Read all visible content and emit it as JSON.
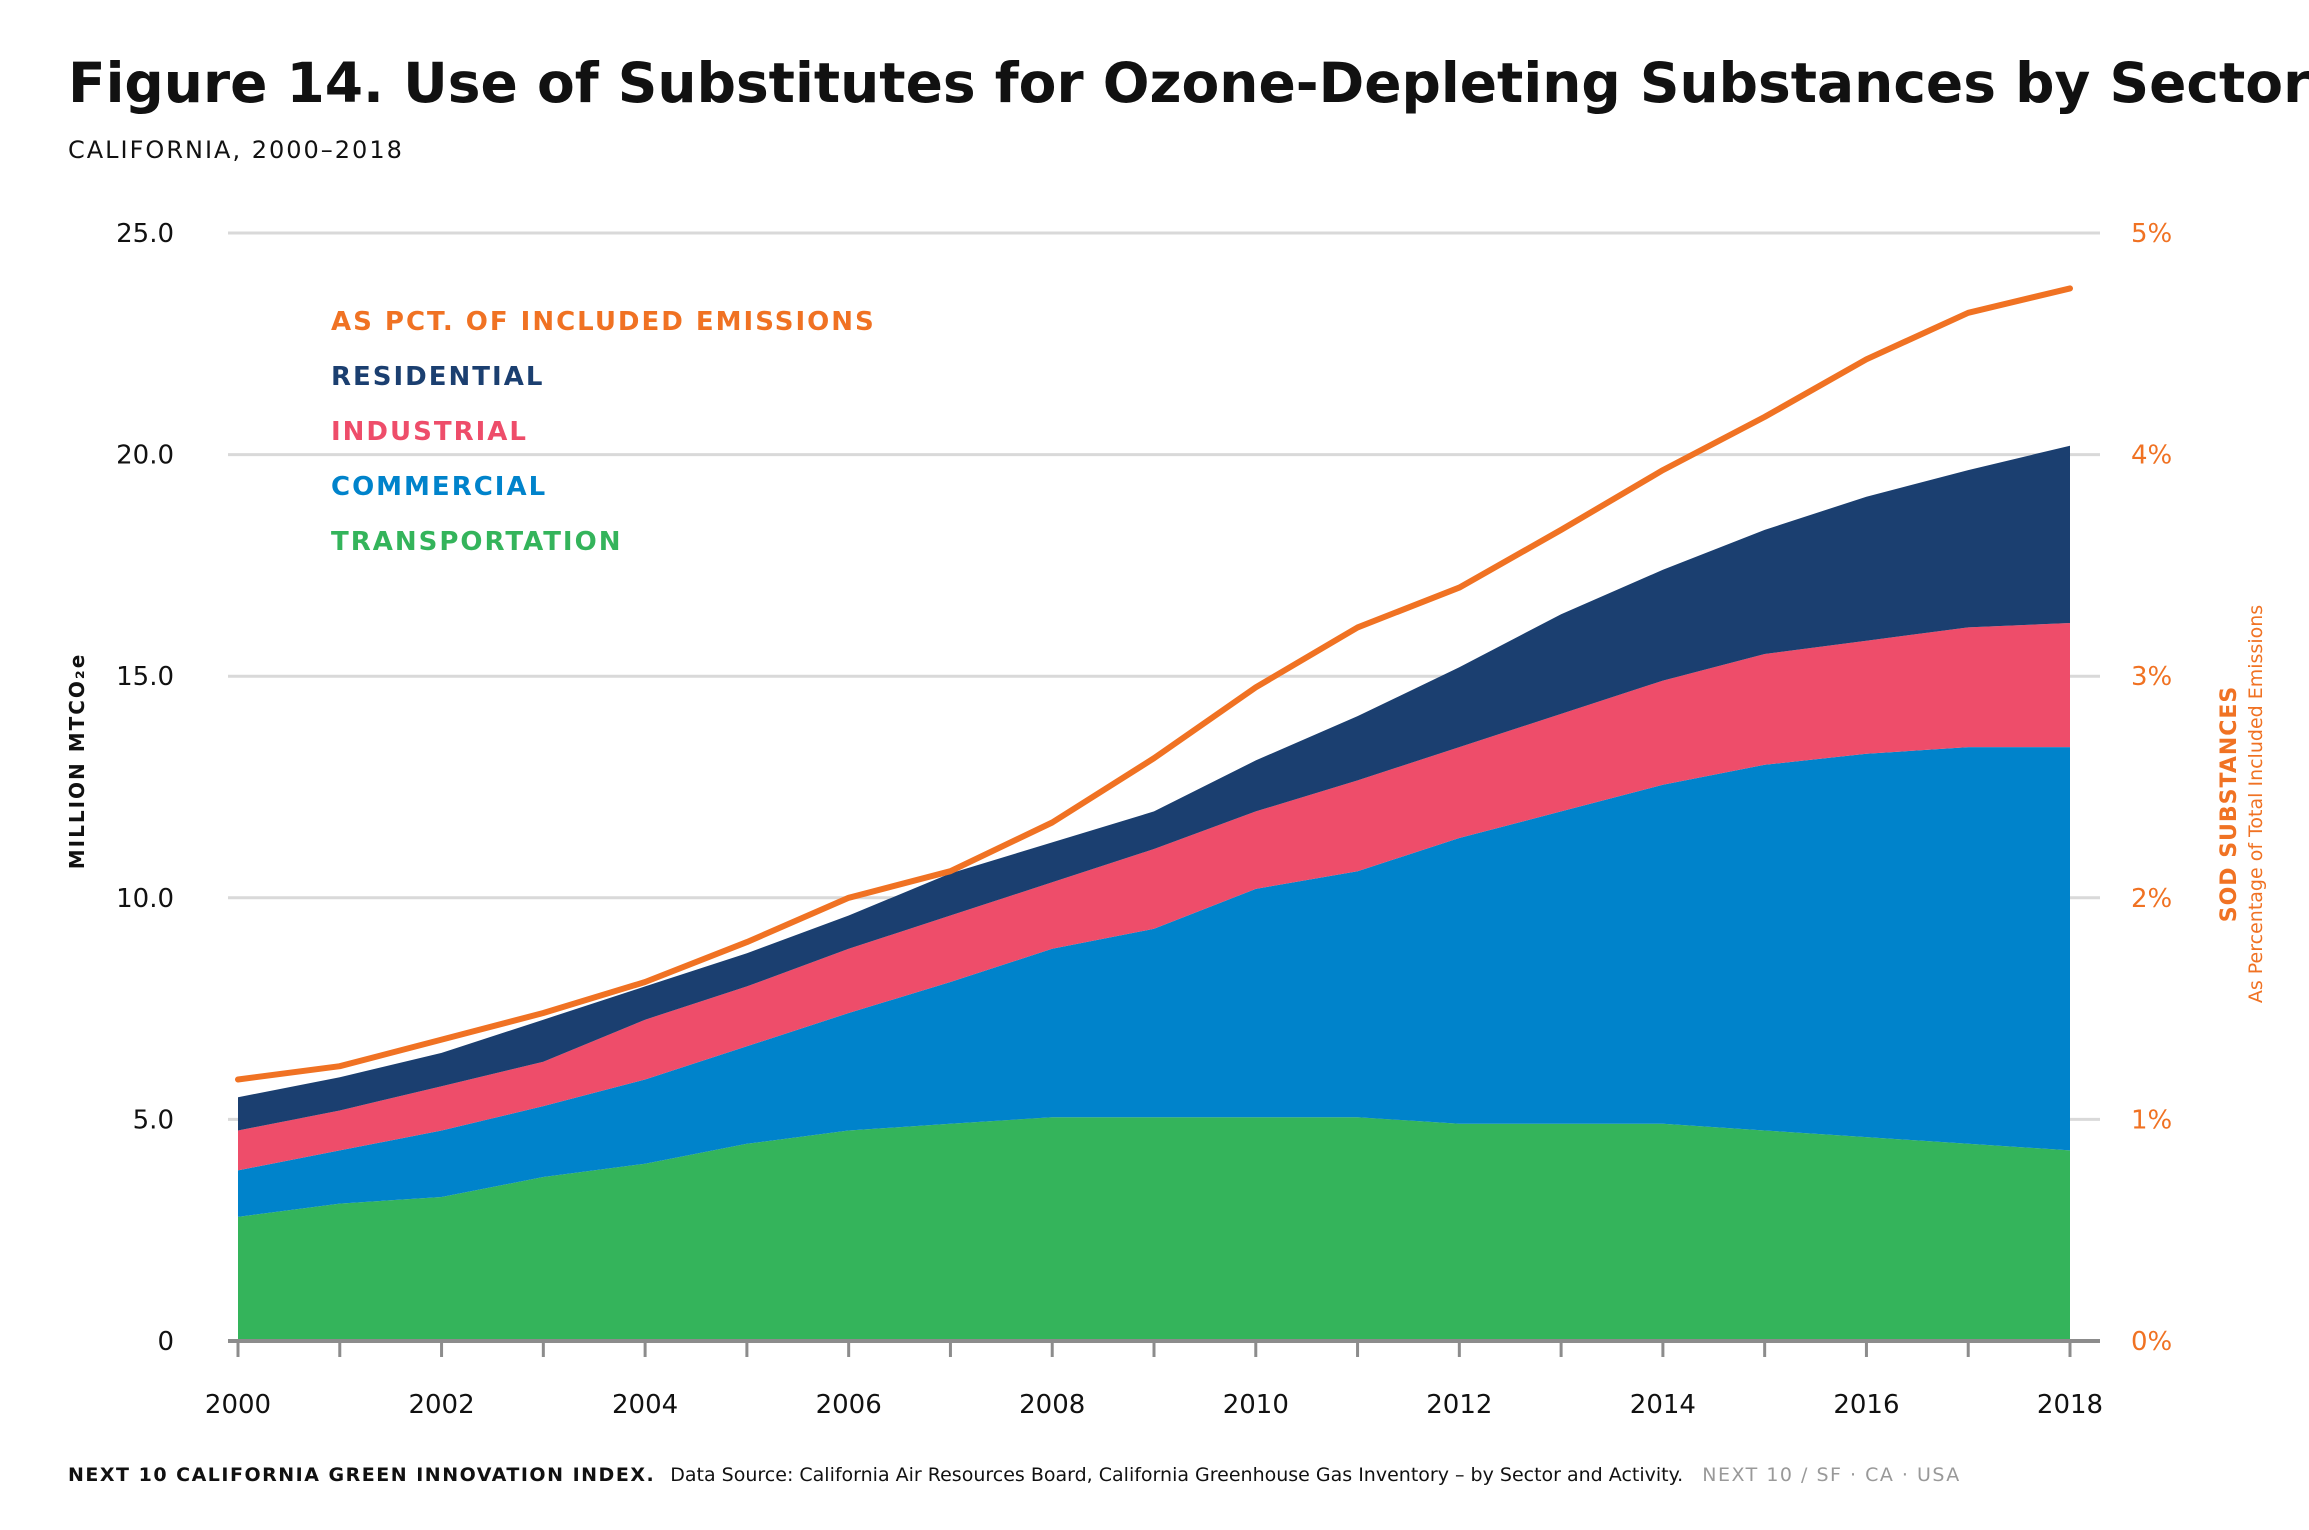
{
  "chart_data": {
    "type": "area",
    "title": "Figure 14. Use of Substitutes for Ozone-Depleting Substances by Sector",
    "subtitle": "CALIFORNIA, 2000–2018",
    "ylabel": "MILLION MTCO₂e",
    "y2label": "SOD SUBSTANCES",
    "y2sublabel": "As Percentage of Total Included Emissions",
    "ylim": [
      0,
      25
    ],
    "y2lim": [
      0,
      5
    ],
    "stacked": true,
    "grid": true,
    "legend_position": "top-left",
    "yticks": [
      "0",
      "5.0",
      "10.0",
      "15.0",
      "20.0",
      "25.0"
    ],
    "y2ticks": [
      "0%",
      "1%",
      "2%",
      "3%",
      "4%",
      "5%"
    ],
    "xticks": [
      "2000",
      "2002",
      "2004",
      "2006",
      "2008",
      "2010",
      "2012",
      "2014",
      "2016",
      "2018"
    ],
    "x": [
      2000,
      2001,
      2002,
      2003,
      2004,
      2005,
      2006,
      2007,
      2008,
      2009,
      2010,
      2011,
      2012,
      2013,
      2014,
      2015,
      2016,
      2017,
      2018
    ],
    "series": [
      {
        "name": "TRANSPORTATION",
        "color": "#34b45b",
        "values": [
          2.8,
          3.1,
          3.25,
          3.7,
          4.0,
          4.45,
          4.75,
          4.9,
          5.05,
          5.05,
          5.05,
          5.05,
          4.9,
          4.9,
          4.9,
          4.75,
          4.6,
          4.45,
          4.3
        ]
      },
      {
        "name": "COMMERCIAL",
        "color": "#0083cb",
        "values": [
          1.05,
          1.2,
          1.5,
          1.6,
          1.9,
          2.2,
          2.65,
          3.2,
          3.8,
          4.25,
          5.15,
          5.55,
          6.45,
          7.05,
          7.65,
          8.25,
          8.65,
          8.95,
          9.1
        ]
      },
      {
        "name": "INDUSTRIAL",
        "color": "#ee4d6a",
        "values": [
          0.9,
          0.9,
          1.0,
          1.0,
          1.35,
          1.35,
          1.45,
          1.5,
          1.5,
          1.8,
          1.75,
          2.05,
          2.05,
          2.2,
          2.35,
          2.5,
          2.55,
          2.7,
          2.8
        ]
      },
      {
        "name": "RESIDENTIAL",
        "color": "#1b3f70",
        "values": [
          0.75,
          0.75,
          0.75,
          0.95,
          0.75,
          0.75,
          0.75,
          0.95,
          0.9,
          0.85,
          1.15,
          1.45,
          1.8,
          2.25,
          2.5,
          2.8,
          3.25,
          3.55,
          4.0
        ]
      }
    ],
    "line_series": {
      "name": "AS PCT. OF INCLUDED EMISSIONS",
      "color": "#f07223",
      "axis": "right",
      "values": [
        1.18,
        1.24,
        1.36,
        1.48,
        1.62,
        1.8,
        2.0,
        2.12,
        2.34,
        2.63,
        2.95,
        3.22,
        3.4,
        3.66,
        3.93,
        4.17,
        4.43,
        4.64,
        4.75
      ]
    }
  },
  "footer": {
    "brand": "NEXT 10 CALIFORNIA GREEN INNOVATION INDEX.",
    "source": "Data Source: California Air Resources Board, California Greenhouse Gas Inventory – by Sector and Activity.",
    "tag": "NEXT 10  /  SF · CA · USA"
  }
}
